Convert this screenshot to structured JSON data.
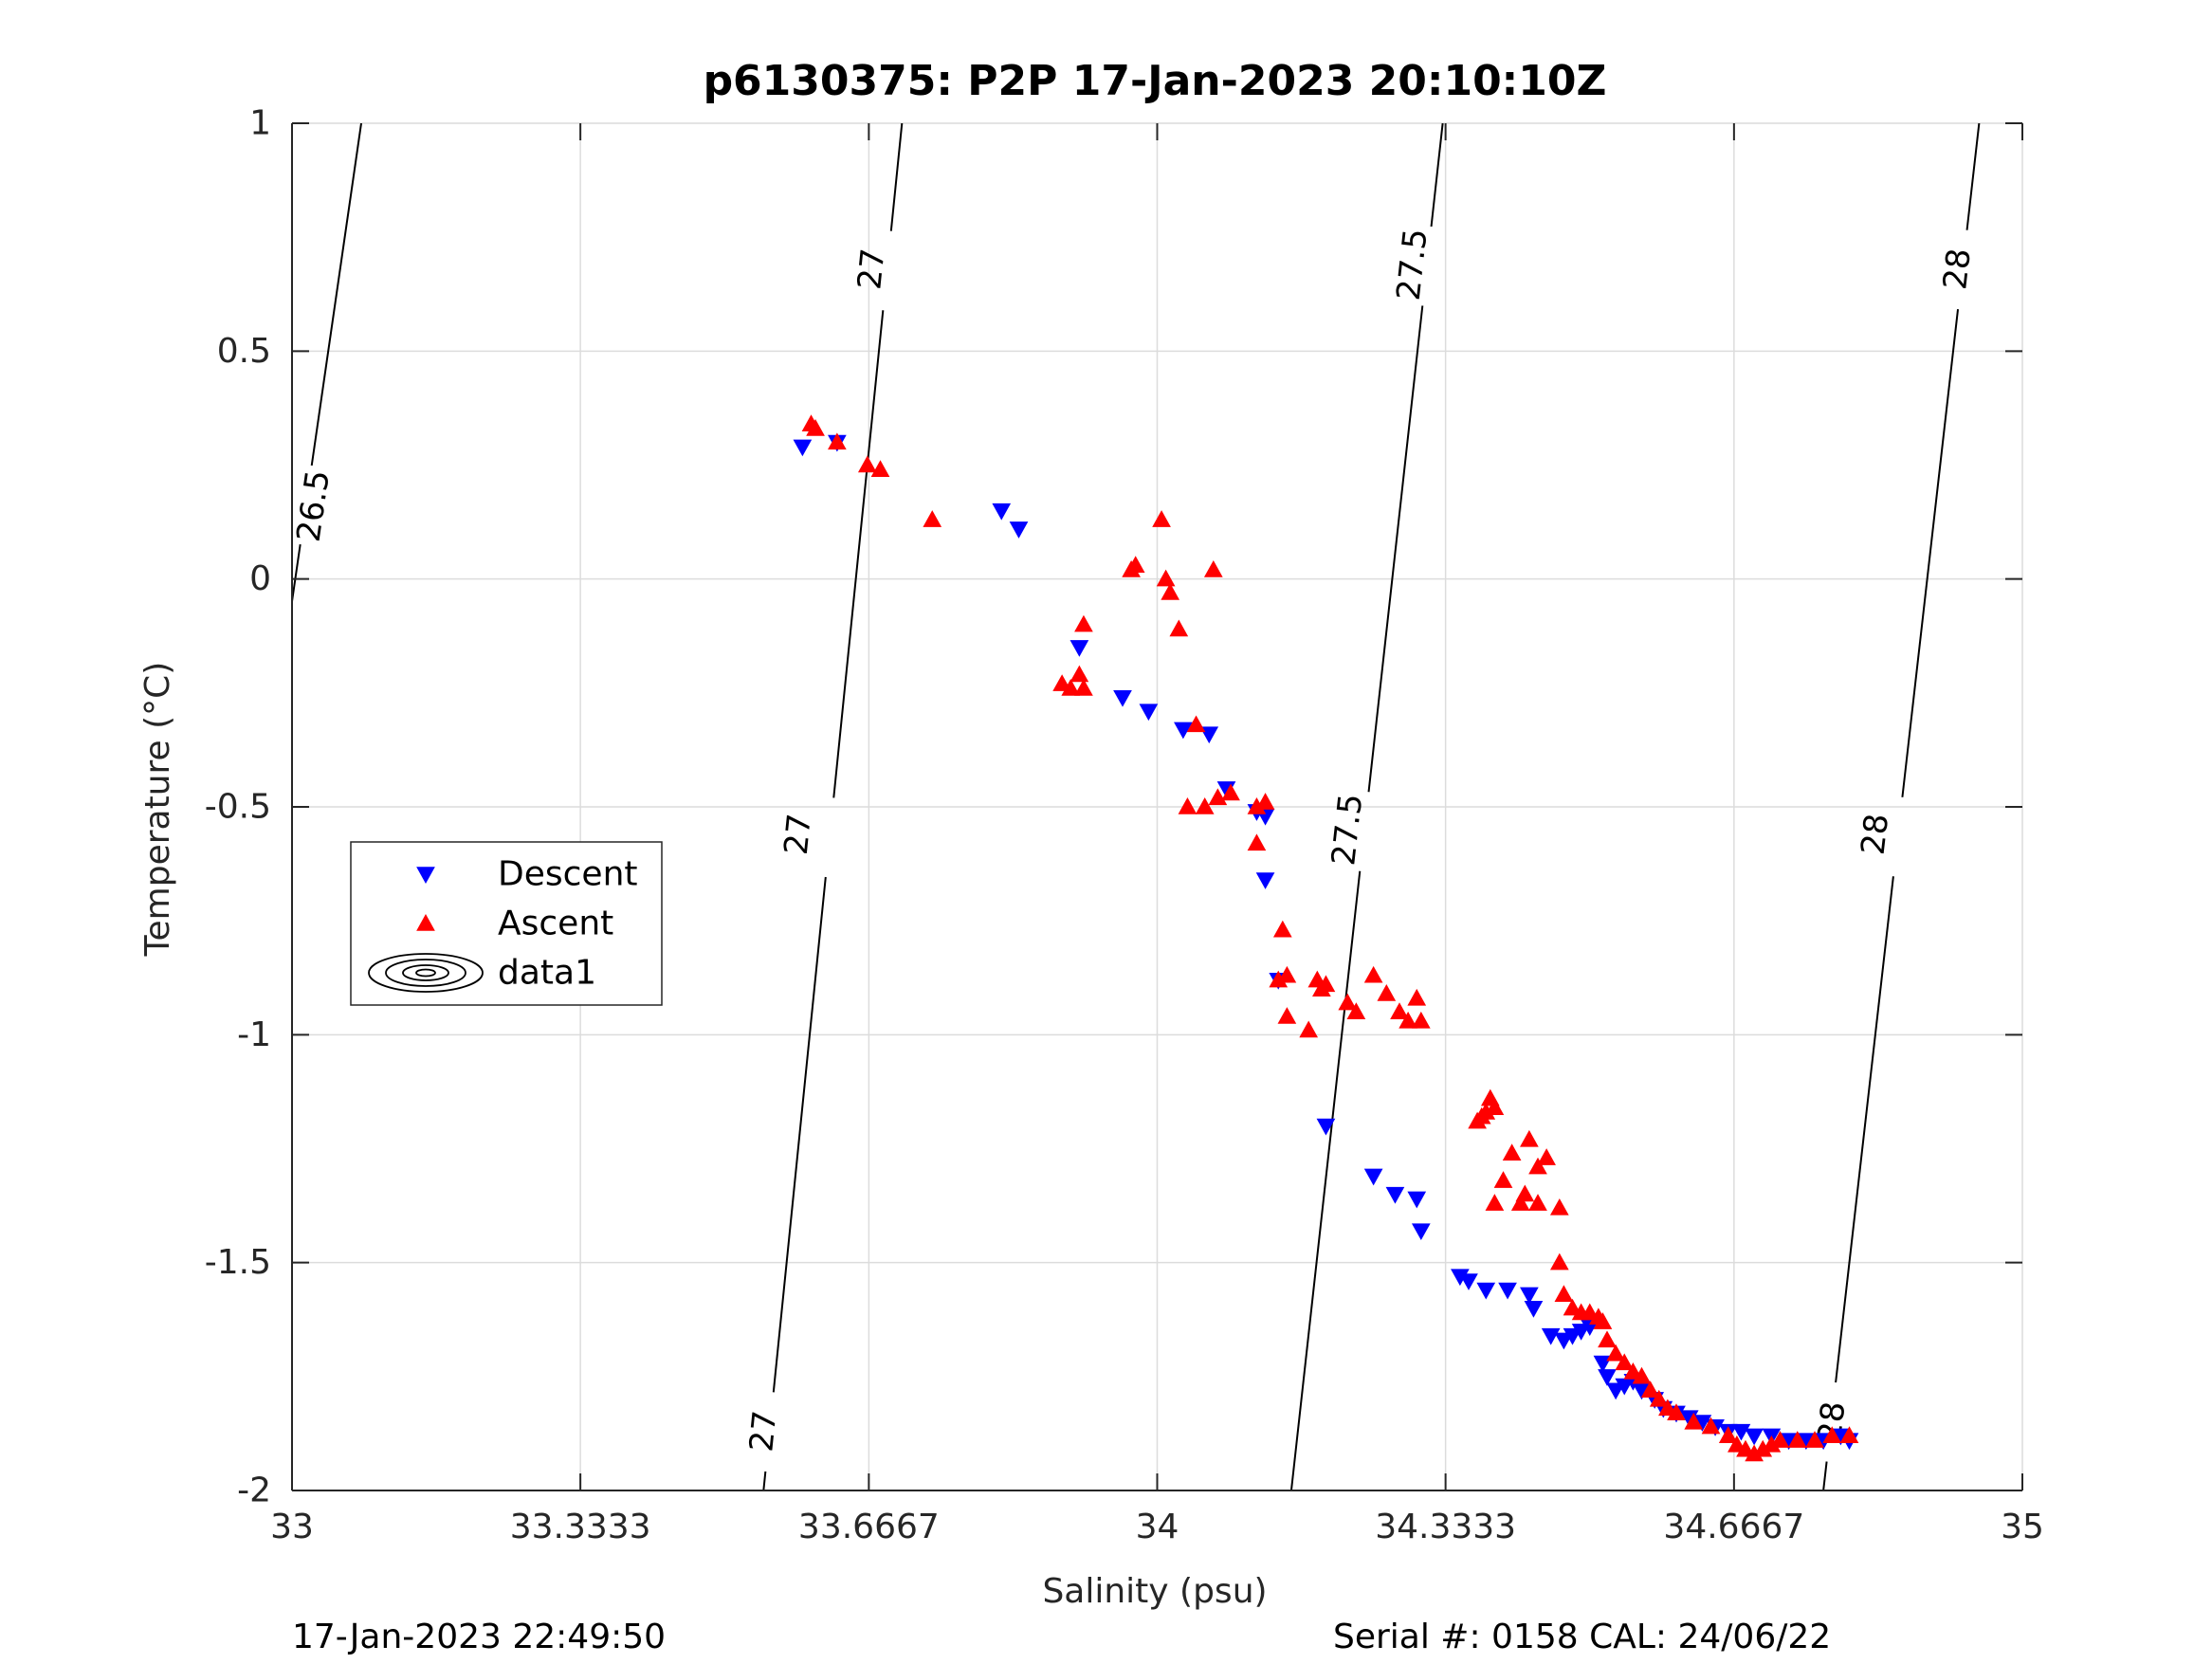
{
  "chart_data": {
    "type": "scatter",
    "title": "p6130375: P2P 17-Jan-2023 20:10:10Z",
    "xlabel": "Salinity (psu)",
    "ylabel": "Temperature (°C)",
    "xlim": [
      33,
      35
    ],
    "ylim": [
      -2,
      1
    ],
    "xticks": [
      33,
      33.3333,
      33.6667,
      34,
      34.3333,
      34.6667,
      35
    ],
    "xtick_labels": [
      "33",
      "33.3333",
      "33.6667",
      "34",
      "34.3333",
      "34.6667",
      "35"
    ],
    "yticks": [
      -2,
      -1.5,
      -1,
      -0.5,
      0,
      0.5,
      1
    ],
    "ytick_labels": [
      "-2",
      "-1.5",
      "-1",
      "-0.5",
      "0",
      "0.5",
      "1"
    ],
    "grid": true,
    "legend_position": "middle-left",
    "legend": [
      {
        "label": "Descent",
        "marker": "triangle-down",
        "color": "#0000ff"
      },
      {
        "label": "Ascent",
        "marker": "triangle-up",
        "color": "#ff0000"
      },
      {
        "label": "data1",
        "marker": "contour",
        "color": "#000000"
      }
    ],
    "footer_left": "17-Jan-2023 22:49:50",
    "footer_right": "Serial #: 0158  CAL: 24/06/22",
    "isopycnals": [
      {
        "label": "26.5",
        "points": [
          [
            32.99,
            -0.18
          ],
          [
            33.08,
            1.0
          ]
        ],
        "label_at": [
          [
            33.025,
            0.16
          ]
        ]
      },
      {
        "label": "27",
        "points": [
          [
            33.545,
            -2.0
          ],
          [
            33.705,
            1.0
          ]
        ],
        "label_at": [
          [
            33.545,
            -1.87
          ],
          [
            33.585,
            -0.56
          ],
          [
            33.67,
            0.68
          ]
        ]
      },
      {
        "label": "27.5",
        "points": [
          [
            34.155,
            -2.0
          ],
          [
            34.33,
            1.0
          ]
        ],
        "label_at": [
          [
            34.22,
            -0.55
          ],
          [
            34.295,
            0.69
          ]
        ]
      },
      {
        "label": "28",
        "points": [
          [
            34.77,
            -2.0
          ],
          [
            34.95,
            1.0
          ]
        ],
        "label_at": [
          [
            34.78,
            -1.85
          ],
          [
            34.83,
            -0.56
          ],
          [
            34.925,
            0.68
          ]
        ]
      }
    ],
    "series": [
      {
        "name": "Descent",
        "color": "#0000ff",
        "marker": "triangle-down",
        "points": [
          [
            33.59,
            0.29
          ],
          [
            33.63,
            0.3
          ],
          [
            33.82,
            0.15
          ],
          [
            33.84,
            0.11
          ],
          [
            33.91,
            -0.15
          ],
          [
            33.96,
            -0.26
          ],
          [
            33.99,
            -0.29
          ],
          [
            34.03,
            -0.33
          ],
          [
            34.06,
            -0.34
          ],
          [
            34.08,
            -0.46
          ],
          [
            34.115,
            -0.51
          ],
          [
            34.125,
            -0.52
          ],
          [
            34.125,
            -0.66
          ],
          [
            34.14,
            -0.88
          ],
          [
            34.195,
            -1.2
          ],
          [
            34.25,
            -1.31
          ],
          [
            34.275,
            -1.35
          ],
          [
            34.3,
            -1.36
          ],
          [
            34.305,
            -1.43
          ],
          [
            34.35,
            -1.53
          ],
          [
            34.36,
            -1.54
          ],
          [
            34.38,
            -1.56
          ],
          [
            34.405,
            -1.56
          ],
          [
            34.43,
            -1.57
          ],
          [
            34.435,
            -1.6
          ],
          [
            34.455,
            -1.66
          ],
          [
            34.47,
            -1.67
          ],
          [
            34.48,
            -1.66
          ],
          [
            34.49,
            -1.65
          ],
          [
            34.5,
            -1.64
          ],
          [
            34.515,
            -1.72
          ],
          [
            34.52,
            -1.75
          ],
          [
            34.53,
            -1.78
          ],
          [
            34.54,
            -1.77
          ],
          [
            34.55,
            -1.76
          ],
          [
            34.56,
            -1.78
          ],
          [
            34.575,
            -1.8
          ],
          [
            34.585,
            -1.82
          ],
          [
            34.6,
            -1.83
          ],
          [
            34.615,
            -1.84
          ],
          [
            34.63,
            -1.85
          ],
          [
            34.645,
            -1.86
          ],
          [
            34.66,
            -1.87
          ],
          [
            34.675,
            -1.87
          ],
          [
            34.69,
            -1.88
          ],
          [
            34.71,
            -1.88
          ],
          [
            34.73,
            -1.89
          ],
          [
            34.75,
            -1.89
          ],
          [
            34.77,
            -1.89
          ],
          [
            34.79,
            -1.88
          ],
          [
            34.8,
            -1.89
          ]
        ]
      },
      {
        "name": "Ascent",
        "color": "#ff0000",
        "marker": "triangle-up",
        "points": [
          [
            33.6,
            0.34
          ],
          [
            33.605,
            0.33
          ],
          [
            33.63,
            0.3
          ],
          [
            33.665,
            0.25
          ],
          [
            33.68,
            0.24
          ],
          [
            33.74,
            0.13
          ],
          [
            33.89,
            -0.23
          ],
          [
            33.9,
            -0.24
          ],
          [
            33.91,
            -0.21
          ],
          [
            33.915,
            -0.24
          ],
          [
            33.915,
            -0.1
          ],
          [
            33.97,
            0.02
          ],
          [
            33.975,
            0.03
          ],
          [
            34.005,
            0.13
          ],
          [
            34.01,
            0.0
          ],
          [
            34.015,
            -0.03
          ],
          [
            34.025,
            -0.11
          ],
          [
            34.035,
            -0.5
          ],
          [
            34.045,
            -0.32
          ],
          [
            34.055,
            -0.5
          ],
          [
            34.065,
            0.02
          ],
          [
            34.07,
            -0.48
          ],
          [
            34.085,
            -0.47
          ],
          [
            34.115,
            -0.5
          ],
          [
            34.125,
            -0.49
          ],
          [
            34.115,
            -0.58
          ],
          [
            34.14,
            -0.88
          ],
          [
            34.145,
            -0.77
          ],
          [
            34.15,
            -0.87
          ],
          [
            34.15,
            -0.96
          ],
          [
            34.175,
            -0.99
          ],
          [
            34.185,
            -0.88
          ],
          [
            34.19,
            -0.9
          ],
          [
            34.195,
            -0.89
          ],
          [
            34.22,
            -0.93
          ],
          [
            34.23,
            -0.95
          ],
          [
            34.25,
            -0.87
          ],
          [
            34.265,
            -0.91
          ],
          [
            34.28,
            -0.95
          ],
          [
            34.29,
            -0.97
          ],
          [
            34.3,
            -0.92
          ],
          [
            34.305,
            -0.97
          ],
          [
            34.37,
            -1.19
          ],
          [
            34.375,
            -1.18
          ],
          [
            34.38,
            -1.17
          ],
          [
            34.385,
            -1.14
          ],
          [
            34.39,
            -1.16
          ],
          [
            34.39,
            -1.37
          ],
          [
            34.4,
            -1.32
          ],
          [
            34.41,
            -1.26
          ],
          [
            34.42,
            -1.37
          ],
          [
            34.425,
            -1.35
          ],
          [
            34.43,
            -1.23
          ],
          [
            34.44,
            -1.37
          ],
          [
            34.44,
            -1.29
          ],
          [
            34.45,
            -1.27
          ],
          [
            34.465,
            -1.38
          ],
          [
            34.465,
            -1.5
          ],
          [
            34.47,
            -1.57
          ],
          [
            34.48,
            -1.6
          ],
          [
            34.49,
            -1.61
          ],
          [
            34.5,
            -1.61
          ],
          [
            34.51,
            -1.62
          ],
          [
            34.515,
            -1.63
          ],
          [
            34.52,
            -1.67
          ],
          [
            34.53,
            -1.7
          ],
          [
            34.54,
            -1.72
          ],
          [
            34.55,
            -1.74
          ],
          [
            34.56,
            -1.75
          ],
          [
            34.57,
            -1.78
          ],
          [
            34.58,
            -1.8
          ],
          [
            34.59,
            -1.82
          ],
          [
            34.6,
            -1.83
          ],
          [
            34.62,
            -1.85
          ],
          [
            34.64,
            -1.86
          ],
          [
            34.66,
            -1.88
          ],
          [
            34.67,
            -1.9
          ],
          [
            34.68,
            -1.91
          ],
          [
            34.69,
            -1.92
          ],
          [
            34.7,
            -1.91
          ],
          [
            34.71,
            -1.9
          ],
          [
            34.72,
            -1.89
          ],
          [
            34.74,
            -1.89
          ],
          [
            34.76,
            -1.89
          ],
          [
            34.78,
            -1.88
          ],
          [
            34.8,
            -1.88
          ]
        ]
      }
    ]
  }
}
